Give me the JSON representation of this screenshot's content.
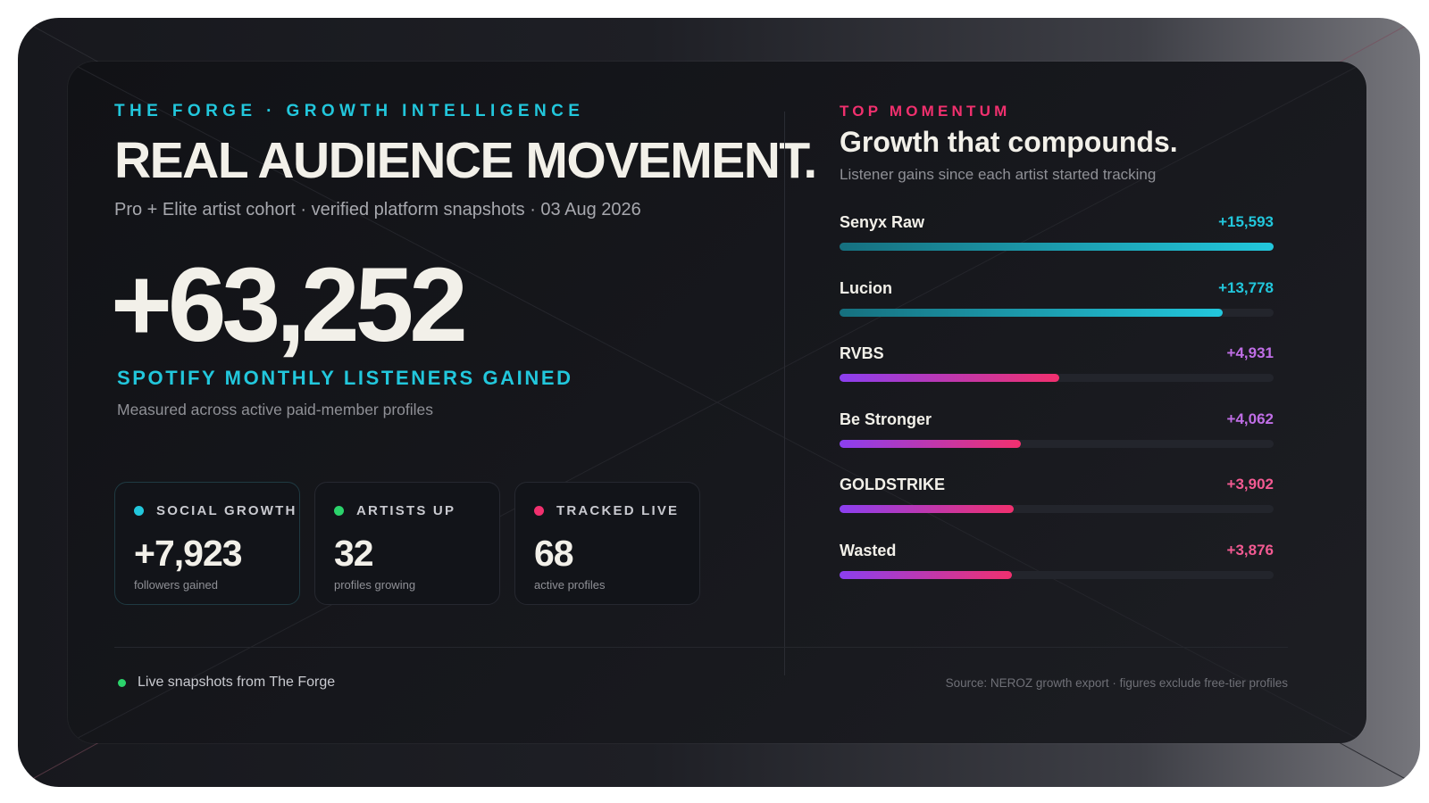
{
  "header": {
    "eyebrow": "THE FORGE · GROWTH INTELLIGENCE",
    "headline": "REAL AUDIENCE MOVEMENT.",
    "subline": "Pro + Elite artist cohort · verified platform snapshots · 03 Aug 2026"
  },
  "hero": {
    "value": "+63,252",
    "label": "SPOTIFY MONTHLY LISTENERS GAINED",
    "note": "Measured across active paid-member profiles"
  },
  "stats": [
    {
      "label": "SOCIAL GROWTH",
      "value": "+7,923",
      "sub": "followers gained",
      "dot_color": "#22c7dc"
    },
    {
      "label": "ARTISTS UP",
      "value": "32",
      "sub": "profiles growing",
      "dot_color": "#2bd36b"
    },
    {
      "label": "TRACKED LIVE",
      "value": "68",
      "sub": "active profiles",
      "dot_color": "#f1306e"
    }
  ],
  "footer": {
    "left": "Live snapshots from The Forge",
    "right": "Source: NEROZ growth export · figures exclude free-tier profiles"
  },
  "panel": {
    "eyebrow": "TOP MOMENTUM",
    "title": "Growth that compounds.",
    "subtitle": "Listener gains since each artist started tracking"
  },
  "colors": {
    "cyan": "#22c7dc",
    "pink": "#f1306e",
    "purple": "#8b3ff0",
    "violet_value": "#c06ee6",
    "pink_value": "#f35a92",
    "green": "#2bd36b"
  },
  "chart_data": {
    "type": "bar",
    "orientation": "horizontal",
    "categories": [
      "Senyx Raw",
      "Lucion",
      "RVBS",
      "Be Stronger",
      "GOLDSTRIKE",
      "Wasted"
    ],
    "values": [
      15593,
      13778,
      4931,
      4062,
      3902,
      3876
    ],
    "value_labels": [
      "+15,593",
      "+13,778",
      "+4,931",
      "+4,062",
      "+3,902",
      "+3,876"
    ],
    "xlim": [
      0,
      15593
    ],
    "title": "Growth that compounds.",
    "subtitle": "Listener gains since each artist started tracking",
    "grid": false
  }
}
